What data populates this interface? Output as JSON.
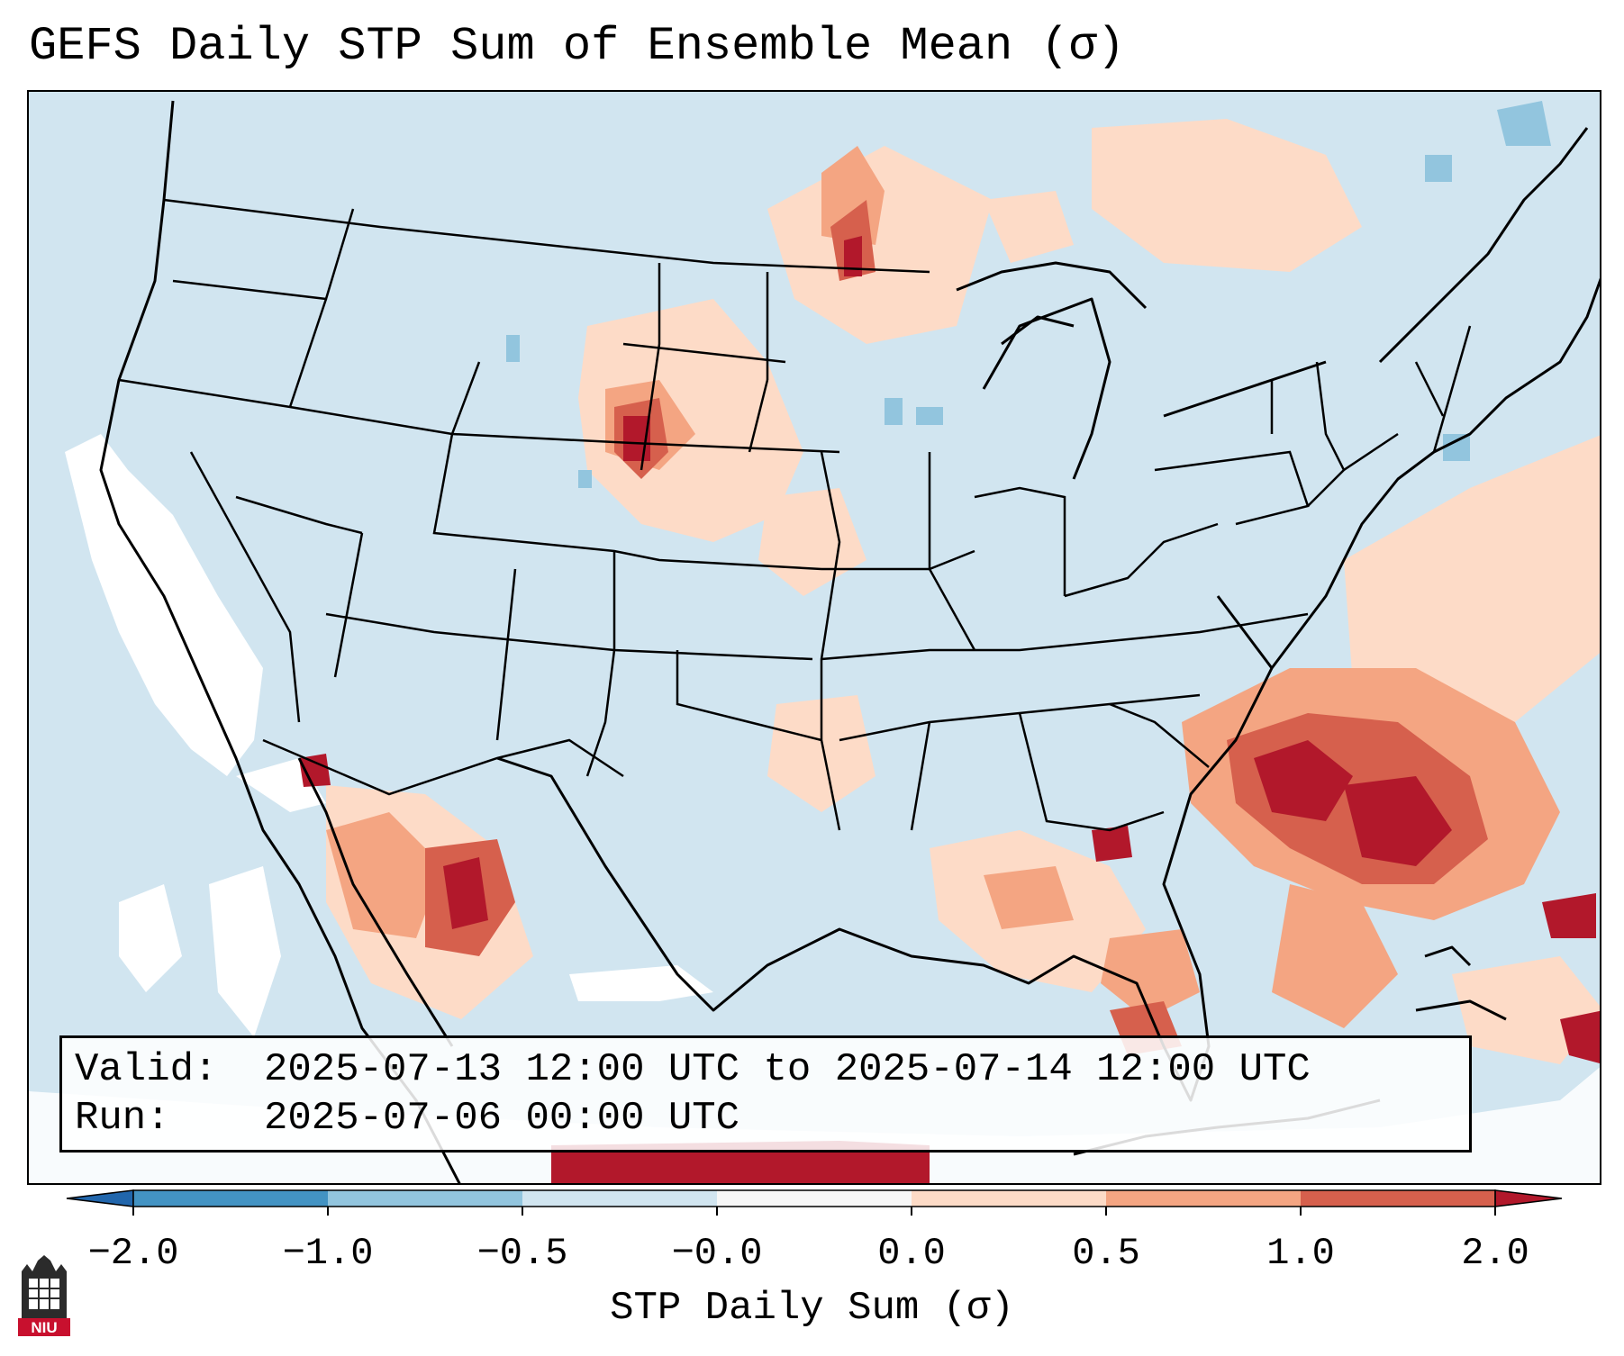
{
  "title": "GEFS Daily STP Sum of Ensemble Mean (σ)",
  "info": {
    "valid_label": "Valid:",
    "valid_value": "2025-07-13 12:00 UTC to 2025-07-14 12:00 UTC",
    "run_label": "Run:",
    "run_value": "2025-07-06 00:00 UTC"
  },
  "colorbar": {
    "label": "STP Daily Sum (σ)",
    "ticks": [
      "−2.0",
      "−1.0",
      "−0.5",
      "−0.0",
      "0.0",
      "0.5",
      "1.0",
      "2.0"
    ],
    "colors": [
      "#4393c3",
      "#92c5de",
      "#d1e5f0",
      "#f7f7f7",
      "#fddbc7",
      "#f4a582",
      "#d6604d"
    ],
    "under_color": "#2166ac",
    "over_color": "#b2182b"
  },
  "logo": {
    "text": "NIU"
  },
  "map": {
    "region": "Contiguous United States",
    "water_color": "#d1e5f0",
    "coast_color": "#000000"
  }
}
